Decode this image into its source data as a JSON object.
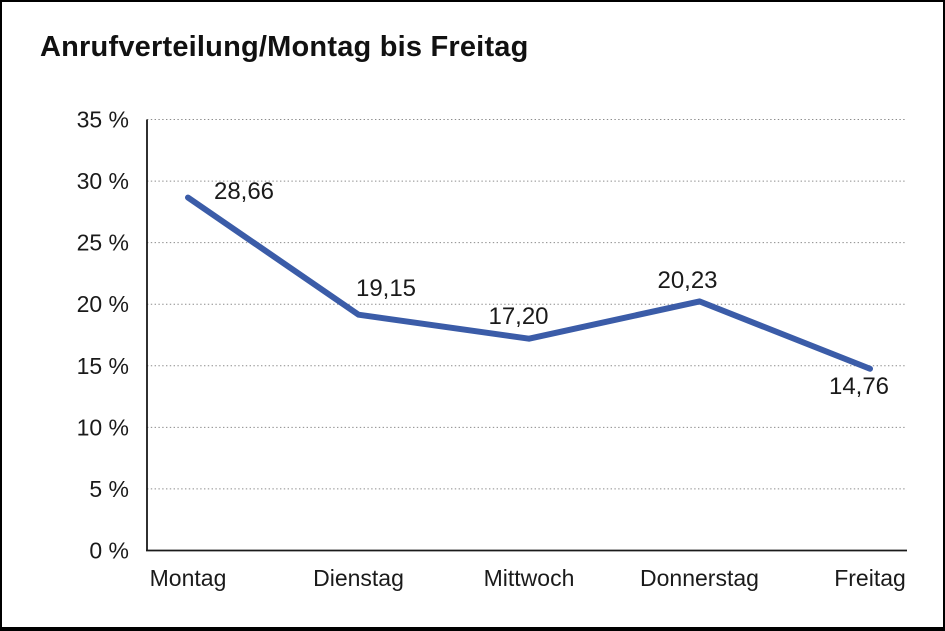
{
  "title": "Anrufverteilung/Montag bis Freitag",
  "colors": {
    "line": "#3B5CA8",
    "text": "#1a1a1a",
    "grid": "#8c8c8c",
    "axis": "#1a1a1a",
    "background": "#ffffff",
    "border": "#000000"
  },
  "chart_data": {
    "type": "line",
    "title": "Anrufverteilung/Montag bis Freitag",
    "categories": [
      "Montag",
      "Dienstag",
      "Mittwoch",
      "Donnerstag",
      "Freitag"
    ],
    "values": [
      28.66,
      19.15,
      17.2,
      20.23,
      14.76
    ],
    "point_labels": [
      "28,66",
      "19,15",
      "17,20",
      "20,23",
      "14,76"
    ],
    "xlabel": "",
    "ylabel": "",
    "ylim": [
      0,
      35
    ],
    "ytick_step": 5,
    "ytick_values": [
      0,
      5,
      10,
      15,
      20,
      25,
      30,
      35
    ],
    "ytick_labels": [
      "0 %",
      "5 %",
      "10 %",
      "15 %",
      "20 %",
      "25 %",
      "30 %",
      "35 %"
    ],
    "grid": "horizontal-dotted",
    "legend": "none",
    "markers": "none",
    "line_color": "#3B5CA8"
  }
}
